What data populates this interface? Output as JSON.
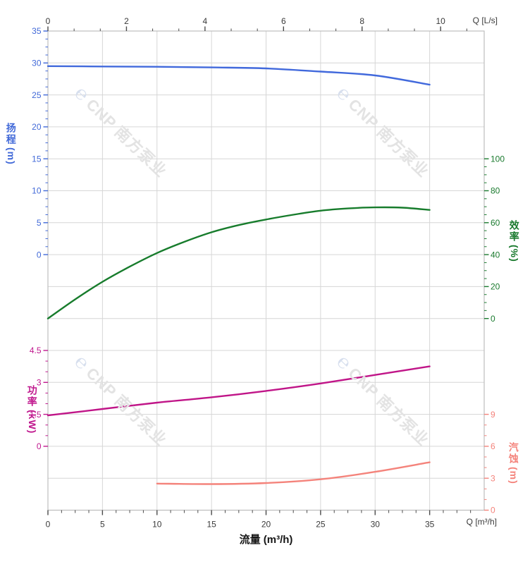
{
  "watermark": {
    "logo_glyph": "℮",
    "text": "CNP 南方泵业"
  },
  "chart_data": {
    "type": "line",
    "title": "",
    "legend": "none",
    "grid": true,
    "x_axis_bottom": {
      "title": "流量 (m³/h)",
      "unit_label": "Q [m³/h]",
      "ticks": [
        0,
        5,
        10,
        15,
        20,
        25,
        30,
        35
      ],
      "minor_step": 1.25,
      "minor_range": [
        0,
        38.8
      ],
      "range": [
        0,
        40
      ],
      "color": "#3a3a3a"
    },
    "x_axis_top": {
      "unit_label": "Q [L/s]",
      "ticks": [
        0,
        2,
        4,
        6,
        8,
        10
      ],
      "minor_step": 0.6667,
      "minor_range": [
        0,
        10.7
      ],
      "range": [
        0,
        11.11
      ],
      "color": "#3a3a3a"
    },
    "y_axes": {
      "head": {
        "title": "扬程",
        "unit": "(m)",
        "side": "left",
        "color": "#4169d8",
        "ticks": [
          35,
          30,
          25,
          20,
          15,
          10,
          5,
          0
        ],
        "minor_step": 1.25,
        "minor_range": [
          0,
          35
        ],
        "value_at_plot_top": 35,
        "value_at_plot_bottom": -40
      },
      "efficiency": {
        "title": "效率",
        "unit": "(%)",
        "side": "right",
        "color": "#1a7a2e",
        "ticks": [
          100,
          80,
          60,
          40,
          20,
          0
        ],
        "minor_step": 5,
        "minor_range": [
          0,
          100
        ],
        "value_at_plot_top": 180,
        "value_at_plot_bottom": -120
      },
      "power": {
        "title": "功率",
        "unit": "(kW)",
        "side": "left",
        "color": "#c0188e",
        "ticks": [
          4.5,
          3,
          1.5,
          0
        ],
        "minor_step": 0.5,
        "minor_range": [
          0,
          4.5
        ],
        "value_at_plot_top": 19.5,
        "value_at_plot_bottom": -3
      },
      "npsh": {
        "title": "汽蚀",
        "unit": "(m)",
        "side": "right",
        "color": "#f4837b",
        "ticks": [
          9,
          6,
          3,
          0
        ],
        "minor_step": 1,
        "minor_range": [
          0,
          9
        ],
        "value_at_plot_top": 45,
        "value_at_plot_bottom": 0
      }
    },
    "series": [
      {
        "name": "head-curve",
        "axis": "head",
        "color": "#4169dc",
        "x": [
          0,
          5,
          10,
          15,
          20,
          25,
          30,
          35
        ],
        "y": [
          29.5,
          29.45,
          29.4,
          29.3,
          29.15,
          28.65,
          28.05,
          26.6
        ]
      },
      {
        "name": "efficiency-curve",
        "axis": "efficiency",
        "color": "#177c2c",
        "x": [
          0,
          2.5,
          5,
          7.5,
          10,
          12.5,
          15,
          17.5,
          20,
          22.5,
          25,
          27.5,
          30,
          32.5,
          35
        ],
        "y": [
          0,
          12,
          23,
          32.5,
          41,
          48,
          54,
          58.5,
          62,
          65,
          67.5,
          68.9,
          69.6,
          69.4,
          68
        ]
      },
      {
        "name": "power-curve",
        "axis": "power",
        "color": "#c01588",
        "x": [
          0,
          5,
          10,
          15,
          20,
          25,
          30,
          35
        ],
        "y": [
          1.45,
          1.75,
          2.05,
          2.3,
          2.6,
          2.95,
          3.35,
          3.75
        ]
      },
      {
        "name": "npsh-curve",
        "axis": "npsh",
        "color": "#f4837b",
        "x": [
          10,
          15,
          20,
          25,
          30,
          35
        ],
        "y": [
          2.5,
          2.45,
          2.55,
          2.9,
          3.6,
          4.5
        ]
      }
    ]
  }
}
